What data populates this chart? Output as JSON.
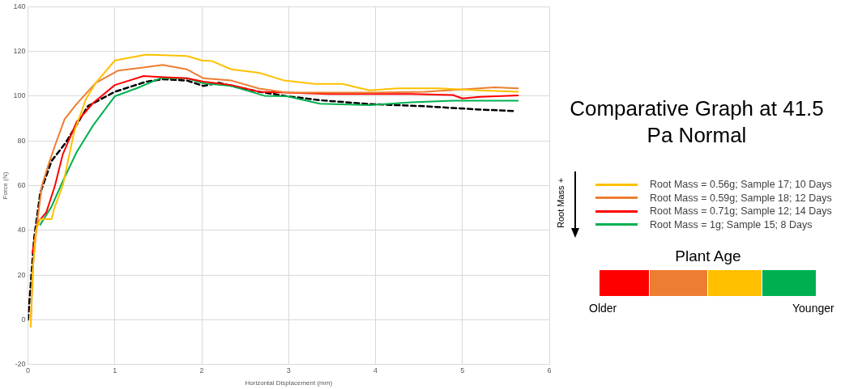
{
  "chart_data": {
    "type": "line",
    "title": "Comparative Graph at 41.5 Pa Normal",
    "xlabel": "Horizontal Displacement (mm)",
    "ylabel": "Force (N)",
    "xlim": [
      0,
      6
    ],
    "xticks": [
      0,
      1,
      2,
      3,
      4,
      5,
      6
    ],
    "ylim": [
      -20,
      140
    ],
    "yticks": [
      -20,
      0,
      20,
      40,
      60,
      80,
      100,
      120,
      140
    ],
    "grid": true,
    "legend": "right",
    "marker": "none",
    "annotations": [
      "Root Mass +",
      "Plant Age",
      "Older",
      "Younger"
    ],
    "series": [
      {
        "name": "Root Mass = 0.56g; Sample 17; 10 Days",
        "color": "#ffc000",
        "x": [
          0.03,
          0.05,
          0.09,
          0.14,
          0.27,
          0.3,
          0.4,
          0.53,
          0.67,
          0.78,
          1.0,
          1.36,
          1.83,
          2.0,
          2.12,
          2.34,
          2.66,
          2.95,
          3.3,
          3.62,
          3.93,
          4.25,
          4.73,
          5.2,
          5.64
        ],
        "values": [
          -3,
          20,
          40,
          45,
          45,
          49.6,
          60,
          84,
          99,
          106,
          116,
          118.6,
          118,
          116,
          115.7,
          112,
          110.5,
          107,
          105.5,
          105.5,
          102.6,
          103.5,
          103.5,
          102.6,
          102
        ]
      },
      {
        "name": "Root Mass = 0.59g; Sample 18; 12 Days",
        "color": "#ed7d31",
        "x": [
          0.03,
          0.06,
          0.1,
          0.16,
          0.24,
          0.32,
          0.42,
          0.56,
          0.78,
          1.04,
          1.36,
          1.55,
          1.83,
          2.02,
          2.34,
          2.66,
          2.98,
          3.46,
          3.93,
          4.57,
          5.37,
          5.64
        ],
        "values": [
          -3,
          25,
          42,
          60,
          70,
          79,
          89.6,
          96.6,
          106,
          111.5,
          113,
          114,
          112,
          108,
          107,
          103.4,
          101.6,
          101.6,
          101.6,
          102,
          104,
          103.5
        ]
      },
      {
        "name": "Root Mass = 0.71g; Sample 12; 14 Days",
        "color": "#ff0000",
        "x": [
          0.05,
          0.11,
          0.21,
          0.31,
          0.4,
          0.56,
          0.75,
          1.0,
          1.33,
          1.52,
          1.83,
          2.02,
          2.34,
          2.66,
          2.98,
          3.46,
          3.93,
          4.41,
          4.89,
          5.0,
          5.2,
          5.64
        ],
        "values": [
          30,
          43.5,
          48,
          60,
          74,
          88.5,
          97,
          105,
          109,
          108.6,
          108,
          106.5,
          105,
          102,
          101.6,
          101,
          101,
          101,
          100.5,
          99,
          99.7,
          100.3
        ]
      },
      {
        "name": "Root Mass = 1g; Sample 15; 8 Days",
        "color": "#00b050",
        "x": [
          0.14,
          0.27,
          0.4,
          0.56,
          0.75,
          1.0,
          1.26,
          1.52,
          1.83,
          2.02,
          2.34,
          2.72,
          2.98,
          3.36,
          3.93,
          4.41,
          4.89,
          5.64
        ],
        "values": [
          42.5,
          50.6,
          62,
          75,
          87,
          100,
          103.7,
          108,
          108,
          105.8,
          104.6,
          100.2,
          100,
          96.6,
          96,
          97.3,
          98,
          98
        ]
      },
      {
        "color": "#000000",
        "line_style": "dashed",
        "x": [
          0.0,
          0.07,
          0.14,
          0.27,
          0.43,
          0.69,
          1.0,
          1.36,
          1.56,
          1.83,
          2.02,
          2.2,
          2.34,
          2.66,
          2.98,
          3.36,
          3.93,
          4.57,
          5.2,
          5.59
        ],
        "values": [
          0,
          36.5,
          56.6,
          71,
          79,
          95.6,
          102,
          106.5,
          107.6,
          107,
          104.6,
          106,
          104.6,
          102,
          100,
          98.2,
          96.5,
          95.5,
          94,
          93.4
        ]
      }
    ]
  }
}
